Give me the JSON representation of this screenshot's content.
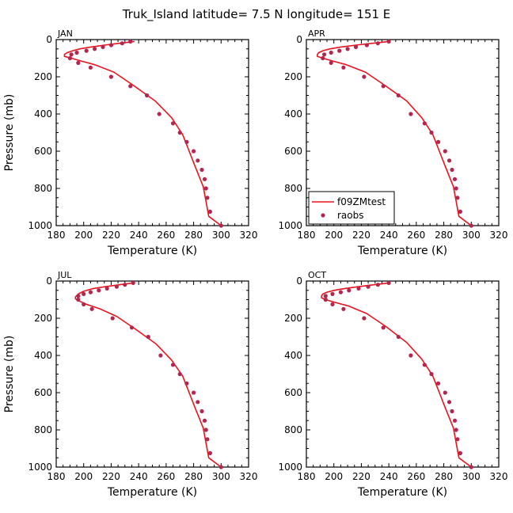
{
  "title": "Truk_Island   latitude= 7.5 N longitude= 151 E",
  "colors": {
    "model": "#e8141e",
    "obs": "#b3274f"
  },
  "legend": {
    "model_label": "f09ZMtest",
    "obs_label": "raobs"
  },
  "chart_data": [
    {
      "type": "line",
      "panel": "JAN",
      "xlabel": "Temperature (K)",
      "ylabel": "Pressure (mb)",
      "xlim": [
        180,
        320
      ],
      "ylim": [
        1000,
        0
      ],
      "xticks": [
        180,
        200,
        220,
        240,
        260,
        280,
        300,
        320
      ],
      "yticks": [
        0,
        200,
        400,
        600,
        800,
        1000
      ],
      "series": [
        {
          "name": "f09ZMtest",
          "kind": "line",
          "points": [
            [
              237,
              10
            ],
            [
              226,
              20
            ],
            [
              215,
              30
            ],
            [
              205,
              40
            ],
            [
              197,
              50
            ],
            [
              192,
              60
            ],
            [
              188,
              70
            ],
            [
              186,
              80
            ],
            [
              186,
              90
            ],
            [
              191,
              100
            ],
            [
              198,
              115
            ],
            [
              208,
              135
            ],
            [
              222,
              175
            ],
            [
              236,
              245
            ],
            [
              252,
              330
            ],
            [
              264,
              420
            ],
            [
              272,
              510
            ],
            [
              276,
              585
            ],
            [
              281,
              680
            ],
            [
              287,
              790
            ],
            [
              289,
              870
            ],
            [
              291,
              950
            ],
            [
              300,
              1000
            ]
          ]
        },
        {
          "name": "raobs",
          "kind": "scatter",
          "points": [
            [
              234,
              10
            ],
            [
              228,
              20
            ],
            [
              220,
              30
            ],
            [
              214,
              40
            ],
            [
              208,
              50
            ],
            [
              202,
              60
            ],
            [
              195,
              70
            ],
            [
              191,
              80
            ],
            [
              190,
              100
            ],
            [
              196,
              125
            ],
            [
              205,
              150
            ],
            [
              220,
              200
            ],
            [
              234,
              250
            ],
            [
              246,
              300
            ],
            [
              255,
              400
            ],
            [
              265,
              450
            ],
            [
              270,
              500
            ],
            [
              275,
              550
            ],
            [
              280,
              600
            ],
            [
              283,
              650
            ],
            [
              286,
              700
            ],
            [
              288,
              750
            ],
            [
              289,
              800
            ],
            [
              290,
              850
            ],
            [
              292,
              925
            ],
            [
              300,
              1000
            ]
          ]
        }
      ]
    },
    {
      "type": "line",
      "panel": "APR",
      "xlabel": "Temperature (K)",
      "ylabel": "",
      "xlim": [
        180,
        320
      ],
      "ylim": [
        1000,
        0
      ],
      "xticks": [
        180,
        200,
        220,
        240,
        260,
        280,
        300,
        320
      ],
      "yticks": [
        0,
        200,
        400,
        600,
        800,
        1000
      ],
      "series": [
        {
          "name": "f09ZMtest",
          "kind": "line",
          "points": [
            [
              240,
              10
            ],
            [
              228,
              20
            ],
            [
              216,
              30
            ],
            [
              205,
              40
            ],
            [
              197,
              50
            ],
            [
              192,
              60
            ],
            [
              189,
              70
            ],
            [
              188,
              80
            ],
            [
              188,
              90
            ],
            [
              192,
              100
            ],
            [
              199,
              115
            ],
            [
              209,
              135
            ],
            [
              223,
              175
            ],
            [
              237,
              245
            ],
            [
              253,
              330
            ],
            [
              264,
              420
            ],
            [
              272,
              510
            ],
            [
              276,
              585
            ],
            [
              281,
              680
            ],
            [
              287,
              790
            ],
            [
              289,
              870
            ],
            [
              291,
              950
            ],
            [
              300,
              1000
            ]
          ]
        },
        {
          "name": "raobs",
          "kind": "scatter",
          "points": [
            [
              240,
              10
            ],
            [
              232,
              20
            ],
            [
              224,
              30
            ],
            [
              216,
              40
            ],
            [
              210,
              50
            ],
            [
              204,
              60
            ],
            [
              198,
              70
            ],
            [
              193,
              80
            ],
            [
              192,
              100
            ],
            [
              198,
              125
            ],
            [
              207,
              150
            ],
            [
              222,
              200
            ],
            [
              236,
              250
            ],
            [
              247,
              300
            ],
            [
              256,
              400
            ],
            [
              266,
              450
            ],
            [
              271,
              500
            ],
            [
              276,
              550
            ],
            [
              281,
              600
            ],
            [
              284,
              650
            ],
            [
              286,
              700
            ],
            [
              288,
              750
            ],
            [
              289,
              800
            ],
            [
              290,
              850
            ],
            [
              292,
              925
            ],
            [
              300,
              1000
            ]
          ]
        }
      ]
    },
    {
      "type": "line",
      "panel": "JUL",
      "xlabel": "Temperature (K)",
      "ylabel": "Pressure (mb)",
      "xlim": [
        180,
        320
      ],
      "ylim": [
        1000,
        0
      ],
      "xticks": [
        180,
        200,
        220,
        240,
        260,
        280,
        300,
        320
      ],
      "yticks": [
        0,
        200,
        400,
        600,
        800,
        1000
      ],
      "series": [
        {
          "name": "f09ZMtest",
          "kind": "line",
          "points": [
            [
              236,
              10
            ],
            [
              226,
              20
            ],
            [
              216,
              30
            ],
            [
              207,
              40
            ],
            [
              200,
              55
            ],
            [
              196,
              70
            ],
            [
              194,
              85
            ],
            [
              194,
              95
            ],
            [
              196,
              105
            ],
            [
              202,
              125
            ],
            [
              212,
              150
            ],
            [
              224,
              190
            ],
            [
              238,
              260
            ],
            [
              253,
              340
            ],
            [
              264,
              425
            ],
            [
              272,
              510
            ],
            [
              276,
              585
            ],
            [
              281,
              680
            ],
            [
              287,
              790
            ],
            [
              289,
              870
            ],
            [
              291,
              950
            ],
            [
              300,
              1000
            ]
          ]
        },
        {
          "name": "raobs",
          "kind": "scatter",
          "points": [
            [
              236,
              10
            ],
            [
              230,
              20
            ],
            [
              224,
              30
            ],
            [
              217,
              40
            ],
            [
              211,
              50
            ],
            [
              205,
              60
            ],
            [
              200,
              70
            ],
            [
              196,
              80
            ],
            [
              196,
              100
            ],
            [
              200,
              125
            ],
            [
              206,
              150
            ],
            [
              221,
              200
            ],
            [
              235,
              250
            ],
            [
              247,
              300
            ],
            [
              256,
              400
            ],
            [
              265,
              450
            ],
            [
              270,
              500
            ],
            [
              275,
              550
            ],
            [
              280,
              600
            ],
            [
              283,
              650
            ],
            [
              286,
              700
            ],
            [
              288,
              750
            ],
            [
              289,
              800
            ],
            [
              290,
              850
            ],
            [
              292,
              925
            ],
            [
              300,
              1000
            ]
          ]
        }
      ]
    },
    {
      "type": "line",
      "panel": "OCT",
      "xlabel": "Temperature (K)",
      "ylabel": "",
      "xlim": [
        180,
        320
      ],
      "ylim": [
        1000,
        0
      ],
      "xticks": [
        180,
        200,
        220,
        240,
        260,
        280,
        300,
        320
      ],
      "yticks": [
        0,
        200,
        400,
        600,
        800,
        1000
      ],
      "series": [
        {
          "name": "f09ZMtest",
          "kind": "line",
          "points": [
            [
              240,
              10
            ],
            [
              229,
              20
            ],
            [
              218,
              30
            ],
            [
              208,
              40
            ],
            [
              200,
              50
            ],
            [
              195,
              60
            ],
            [
              192,
              70
            ],
            [
              191,
              80
            ],
            [
              191,
              90
            ],
            [
              194,
              100
            ],
            [
              201,
              115
            ],
            [
              211,
              135
            ],
            [
              224,
              175
            ],
            [
              238,
              245
            ],
            [
              253,
              330
            ],
            [
              264,
              420
            ],
            [
              272,
              510
            ],
            [
              276,
              585
            ],
            [
              281,
              680
            ],
            [
              287,
              790
            ],
            [
              289,
              870
            ],
            [
              291,
              950
            ],
            [
              300,
              1000
            ]
          ]
        },
        {
          "name": "raobs",
          "kind": "scatter",
          "points": [
            [
              240,
              10
            ],
            [
              232,
              20
            ],
            [
              225,
              30
            ],
            [
              218,
              40
            ],
            [
              211,
              50
            ],
            [
              205,
              60
            ],
            [
              199,
              70
            ],
            [
              194,
              80
            ],
            [
              194,
              100
            ],
            [
              199,
              125
            ],
            [
              207,
              150
            ],
            [
              222,
              200
            ],
            [
              236,
              250
            ],
            [
              247,
              300
            ],
            [
              256,
              400
            ],
            [
              266,
              450
            ],
            [
              271,
              500
            ],
            [
              276,
              550
            ],
            [
              281,
              600
            ],
            [
              284,
              650
            ],
            [
              286,
              700
            ],
            [
              288,
              750
            ],
            [
              289,
              800
            ],
            [
              290,
              850
            ],
            [
              292,
              925
            ],
            [
              300,
              1000
            ]
          ]
        }
      ]
    }
  ]
}
